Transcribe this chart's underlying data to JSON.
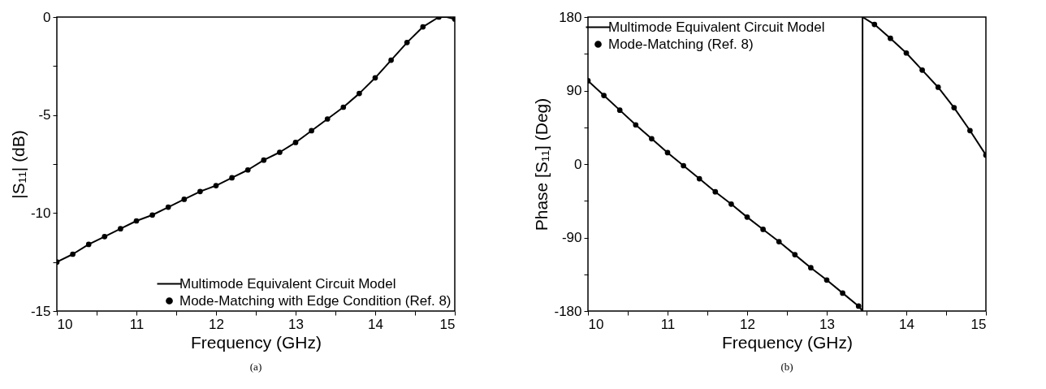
{
  "chart_data": [
    {
      "type": "line",
      "xlabel": "Frequency (GHz)",
      "ylabel": "|S₁₁|  (dB)",
      "xlim": [
        10,
        15
      ],
      "ylim": [
        -15,
        0
      ],
      "xticks": [
        10,
        {
          "value": 10.5,
          "label": null
        },
        11,
        {
          "value": 11.5,
          "label": null
        },
        12,
        {
          "value": 12.5,
          "label": null
        },
        13,
        {
          "value": 13.5,
          "label": null
        },
        14,
        {
          "value": 14.5,
          "label": null
        },
        15
      ],
      "yticks": [
        -15,
        {
          "value": -12.5,
          "label": null
        },
        -10,
        {
          "value": -7.5,
          "label": null
        },
        -5,
        {
          "value": -2.5,
          "label": null
        },
        0
      ],
      "legend": "bottom right",
      "annotations": [
        "(a)"
      ],
      "series": [
        {
          "name": "Multimode Equivalent Circuit Model",
          "type": "line",
          "color": "#000000",
          "x": [
            10,
            10.2,
            10.4,
            10.6,
            10.8,
            11,
            11.2,
            11.4,
            11.6,
            11.8,
            12,
            12.2,
            12.4,
            12.6,
            12.8,
            13,
            13.2,
            13.4,
            13.6,
            13.8,
            14,
            14.2,
            14.4,
            14.6,
            14.8,
            14.9,
            15
          ],
          "values": [
            -12.5,
            -12.1,
            -11.6,
            -11.2,
            -10.8,
            -10.4,
            -10.1,
            -9.7,
            -9.3,
            -8.9,
            -8.6,
            -8.2,
            -7.8,
            -7.3,
            -6.9,
            -6.4,
            -5.8,
            -5.2,
            -4.6,
            -3.9,
            -3.1,
            -2.2,
            -1.3,
            -0.5,
            0,
            0,
            -0.1
          ]
        },
        {
          "name": "Mode-Matching with Edge Condition (Ref. 8)",
          "type": "scatter",
          "color": "#000000",
          "x": [
            10,
            10.2,
            10.4,
            10.6,
            10.8,
            11,
            11.2,
            11.4,
            11.6,
            11.8,
            12,
            12.2,
            12.4,
            12.6,
            12.8,
            13,
            13.2,
            13.4,
            13.6,
            13.8,
            14,
            14.2,
            14.4,
            14.6,
            14.8,
            15
          ],
          "values": [
            -12.5,
            -12.1,
            -11.6,
            -11.2,
            -10.8,
            -10.4,
            -10.1,
            -9.7,
            -9.3,
            -8.9,
            -8.6,
            -8.2,
            -7.8,
            -7.3,
            -6.9,
            -6.4,
            -5.8,
            -5.2,
            -4.6,
            -3.9,
            -3.1,
            -2.2,
            -1.3,
            -0.5,
            0,
            -0.1
          ]
        }
      ]
    },
    {
      "type": "line",
      "xlabel": "Frequency (GHz)",
      "ylabel": "Phase [S₁₁]  (Deg)",
      "xlim": [
        10,
        15
      ],
      "ylim": [
        -180,
        180
      ],
      "xticks": [
        10,
        {
          "value": 10.5,
          "label": null
        },
        11,
        {
          "value": 11.5,
          "label": null
        },
        12,
        {
          "value": 12.5,
          "label": null
        },
        13,
        {
          "value": 13.5,
          "label": null
        },
        14,
        {
          "value": 14.5,
          "label": null
        },
        15
      ],
      "yticks": [
        -180,
        {
          "value": -135,
          "label": null
        },
        -90,
        {
          "value": -45,
          "label": null
        },
        0,
        {
          "value": 45,
          "label": null
        },
        90,
        {
          "value": 135,
          "label": null
        },
        180
      ],
      "legend": "top left",
      "annotations": [
        "(b)"
      ],
      "series": [
        {
          "name": "Multimode Equivalent Circuit Model",
          "type": "line",
          "color": "#000000",
          "x": [
            10,
            10.2,
            10.4,
            10.6,
            10.8,
            11,
            11.2,
            11.4,
            11.6,
            11.8,
            12,
            12.2,
            12.4,
            12.6,
            12.8,
            13,
            13.2,
            13.4,
            13.45,
            13.45,
            13.6,
            13.8,
            14,
            14.2,
            14.4,
            14.6,
            14.8,
            15
          ],
          "values": [
            102,
            84,
            66,
            48,
            31,
            14,
            -2,
            -18,
            -34,
            -49,
            -65,
            -80,
            -95,
            -111,
            -127,
            -142,
            -158,
            -174,
            -180,
            180,
            171,
            154,
            136,
            115,
            94,
            69,
            41,
            11
          ]
        },
        {
          "name": "Mode-Matching  (Ref. 8)",
          "type": "scatter",
          "color": "#000000",
          "x": [
            10,
            10.2,
            10.4,
            10.6,
            10.8,
            11,
            11.2,
            11.4,
            11.6,
            11.8,
            12,
            12.2,
            12.4,
            12.6,
            12.8,
            13,
            13.2,
            13.4,
            13.6,
            13.8,
            14,
            14.2,
            14.4,
            14.6,
            14.8,
            15
          ],
          "values": [
            102,
            84,
            66,
            48,
            31,
            14,
            -2,
            -18,
            -34,
            -49,
            -65,
            -80,
            -95,
            -111,
            -127,
            -142,
            -158,
            -174,
            171,
            154,
            136,
            115,
            94,
            69,
            41,
            11
          ]
        }
      ]
    }
  ]
}
